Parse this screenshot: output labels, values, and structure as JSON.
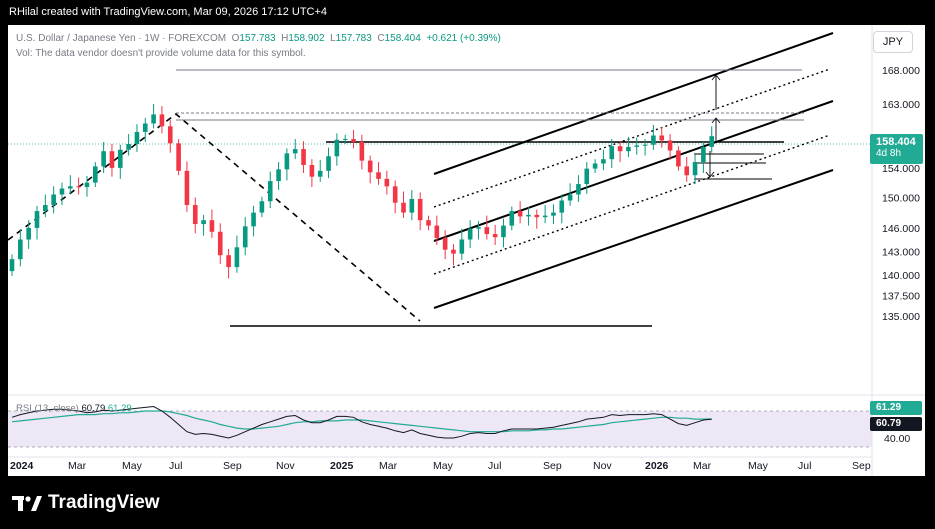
{
  "header": {
    "credit": "RHilal created with TradingView.com, Mar 09, 2026 17:12 UTC+4"
  },
  "legend": {
    "symbol": "U.S. Dollar / Japanese Yen · 1W · FOREXCOM",
    "open_label": "O",
    "open": "157.783",
    "high_label": "H",
    "high": "158.902",
    "low_label": "L",
    "low": "157.783",
    "close_label": "C",
    "close": "158.404",
    "change": "+0.621 (+0.39%)",
    "volume_note": "Vol: The data vendor doesn't provide volume data for this symbol."
  },
  "currency_button": "JPY",
  "price_tag": {
    "price": "158.404",
    "countdown": "4d 8h",
    "color": "#22ab94"
  },
  "rsi_legend": {
    "label": "RSI (13, close)",
    "rsi": "60.79",
    "ma": "61.29"
  },
  "rsi_tags": {
    "ma": "61.29",
    "rsi": "60.79"
  },
  "brand": {
    "name": "TradingView"
  },
  "colors": {
    "up": "#089981",
    "down": "#f23645",
    "rsi_ma": "#22ab94",
    "rsi_band": "#ede7f6"
  },
  "chart_data": [
    {
      "type": "candlestick",
      "title": "U.S. Dollar / Japanese Yen · 1W · FOREXCOM",
      "y_axis": {
        "ticks": [
          "168.000",
          "163.000",
          "158.404",
          "154.000",
          "150.000",
          "146.000",
          "143.000",
          "140.000",
          "137.500",
          "135.000"
        ],
        "ylim": [
          133.0,
          172.0
        ],
        "scale": "log"
      },
      "x_axis": {
        "labels": [
          "2024",
          "Mar",
          "May",
          "Jul",
          "Sep",
          "Nov",
          "2025",
          "Mar",
          "May",
          "Jul",
          "Sep",
          "Nov",
          "2026",
          "Mar",
          "May",
          "Jul",
          "Sep"
        ]
      },
      "series": [
        {
          "name": "Close",
          "values": [
            142.0,
            144.5,
            146.0,
            148.2,
            149.0,
            150.4,
            151.2,
            151.5,
            151.4,
            152.0,
            154.2,
            156.3,
            154.0,
            156.5,
            157.3,
            159.0,
            160.2,
            161.5,
            159.8,
            157.4,
            153.6,
            149.0,
            146.5,
            147.0,
            145.5,
            142.5,
            141.0,
            143.5,
            146.2,
            148.0,
            149.5,
            152.2,
            153.8,
            156.0,
            156.6,
            154.4,
            152.8,
            153.6,
            155.6,
            157.9,
            158.0,
            157.6,
            155.0,
            153.4,
            152.5,
            151.5,
            149.3,
            148.0,
            149.8,
            147.0,
            146.3,
            144.7,
            143.2,
            142.7,
            144.5,
            145.9,
            146.1,
            145.2,
            144.8,
            146.3,
            148.2,
            147.5,
            147.7,
            147.4,
            147.6,
            148.0,
            149.6,
            150.4,
            151.8,
            153.9,
            154.6,
            155.2,
            157.0,
            156.3,
            156.9,
            157.1,
            157.2,
            158.5,
            157.8,
            156.4,
            154.2,
            153.0,
            154.8,
            156.9,
            158.404
          ]
        }
      ],
      "annotations": [
        "ascending channel (upper, middle, lower) with dotted midlines",
        "horizontal resistance near 156.4 and support near 139.6",
        "dashed zigzag trend lines",
        "measured move arrows toward 163 and 168"
      ],
      "grid": false,
      "legend_position": "top-left"
    },
    {
      "type": "line",
      "title": "RSI (13, close)",
      "y_axis": {
        "ticks": [
          "61.29",
          "60.79",
          "40.00"
        ],
        "ylim": [
          30,
          90
        ]
      },
      "band": [
        30,
        70
      ],
      "series": [
        {
          "name": "RSI",
          "values": [
            63,
            66,
            68,
            70,
            71,
            72,
            72,
            71,
            70,
            68,
            69,
            71,
            70,
            71,
            72,
            73,
            74,
            75,
            70,
            63,
            55,
            47,
            44,
            45,
            44,
            42,
            40,
            43,
            47,
            51,
            55,
            58,
            61,
            64,
            65,
            60,
            57,
            57,
            60,
            64,
            64,
            63,
            58,
            55,
            53,
            51,
            48,
            46,
            49,
            45,
            43,
            41,
            40,
            40,
            42,
            45,
            46,
            45,
            45,
            48,
            50,
            50,
            50,
            50,
            51,
            52,
            54,
            56,
            58,
            61,
            62,
            63,
            66,
            65,
            66,
            66,
            66,
            67,
            66,
            61,
            56,
            54,
            57,
            60,
            60.79
          ]
        },
        {
          "name": "MA",
          "values": [
            58,
            59,
            60,
            61,
            62,
            63,
            64,
            65,
            66,
            66,
            66,
            67,
            67,
            68,
            68,
            69,
            70,
            70,
            70,
            69,
            67,
            65,
            62,
            60,
            58,
            55,
            53,
            51,
            50,
            50,
            51,
            52,
            53,
            55,
            57,
            58,
            58,
            59,
            59,
            59,
            60,
            60,
            60,
            59,
            58,
            57,
            56,
            55,
            54,
            53,
            52,
            51,
            50,
            49,
            48,
            47,
            47,
            47,
            47,
            47,
            48,
            48,
            48,
            49,
            49,
            50,
            50,
            51,
            52,
            53,
            54,
            55,
            57,
            58,
            59,
            60,
            61,
            62,
            63,
            63,
            62,
            62,
            61,
            61,
            61.29
          ]
        }
      ]
    }
  ]
}
